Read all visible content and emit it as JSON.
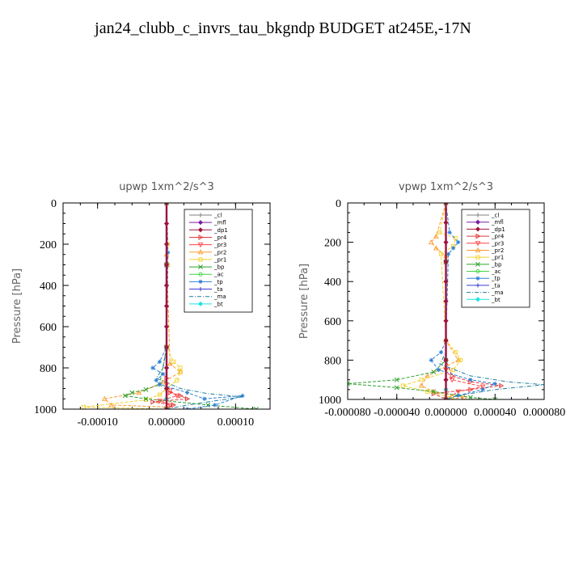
{
  "title": "jan24_clubb_c_invrs_tau_bkgndp  BUDGET at245E,-17N",
  "series_meta": [
    {
      "name": "_cl",
      "color": "#7f7f7f",
      "marker": "plus"
    },
    {
      "name": "_mfl",
      "color": "#7b1fa2",
      "marker": "diamond"
    },
    {
      "name": "_dp1",
      "color": "#a0143c",
      "marker": "diamond"
    },
    {
      "name": "_pr4",
      "color": "#e03a3a",
      "marker": "tri-right"
    },
    {
      "name": "_pr3",
      "color": "#ff4040",
      "marker": "tri-down"
    },
    {
      "name": "_pr2",
      "color": "#ff9a2e",
      "marker": "tri-up"
    },
    {
      "name": "_pr1",
      "color": "#f2d12a",
      "marker": "square"
    },
    {
      "name": "_bp",
      "color": "#2ca02c",
      "marker": "x"
    },
    {
      "name": "_ac",
      "color": "#3fd43f",
      "marker": "circle"
    },
    {
      "name": "_tp",
      "color": "#2e7fd6",
      "marker": "star"
    },
    {
      "name": "_ta",
      "color": "#3b3bd6",
      "marker": "plus"
    },
    {
      "name": "_ma",
      "color": "#1f7d9c",
      "marker": "none"
    },
    {
      "name": "_bt",
      "color": "#1ee3e3",
      "marker": "diamond"
    }
  ],
  "chart_data": [
    {
      "type": "line",
      "title": "upwp   1xm^2/s^3",
      "xlabel": "",
      "ylabel": "Pressure [hPa]",
      "xlim": [
        -0.00015,
        0.00015
      ],
      "ylim": [
        1000,
        0
      ],
      "xticks": [
        -0.0001,
        0,
        0.0001
      ],
      "xtick_labels": [
        "-0.00010",
        "0.00000",
        "0.00010"
      ],
      "yticks": [
        0,
        200,
        400,
        600,
        800,
        1000
      ],
      "ytick_labels": [
        "0",
        "200",
        "400",
        "600",
        "800",
        "1000"
      ],
      "legend": "top-right",
      "grid": false,
      "series": [
        {
          "name": "_cl",
          "x": [
            0,
            0,
            0,
            0,
            0,
            0,
            0,
            0,
            0,
            0,
            0
          ],
          "y": [
            0,
            100,
            200,
            300,
            400,
            500,
            600,
            700,
            800,
            900,
            1000
          ]
        },
        {
          "name": "_mfl",
          "x": [
            0,
            0,
            0,
            0,
            0,
            0,
            0,
            0,
            0,
            0,
            0
          ],
          "y": [
            0,
            100,
            200,
            300,
            400,
            500,
            600,
            700,
            800,
            900,
            1000
          ]
        },
        {
          "name": "_dp1",
          "x": [
            0,
            0,
            0,
            0,
            0,
            0,
            0,
            0,
            0,
            0,
            0
          ],
          "y": [
            0,
            100,
            200,
            300,
            400,
            500,
            600,
            700,
            800,
            900,
            1000
          ]
        },
        {
          "name": "_pr4",
          "x": [
            0,
            0,
            0,
            0,
            0,
            5e-06,
            2e-05,
            3e-05,
            -2e-05,
            1e-05,
            0
          ],
          "y": [
            0,
            300,
            700,
            850,
            900,
            920,
            935,
            950,
            965,
            980,
            1000
          ]
        },
        {
          "name": "_pr3",
          "x": [
            0,
            0,
            0,
            0,
            5e-06,
            1.5e-05,
            -1e-05,
            5e-06,
            0
          ],
          "y": [
            0,
            300,
            700,
            880,
            910,
            935,
            960,
            980,
            1000
          ]
        },
        {
          "name": "_pr2",
          "x": [
            0,
            0,
            5e-06,
            2e-05,
            -5e-06,
            -4e-05,
            -9e-05,
            -8e-05,
            0,
            0
          ],
          "y": [
            0,
            250,
            780,
            820,
            870,
            920,
            950,
            980,
            990,
            1000
          ]
        },
        {
          "name": "_pr1",
          "x": [
            0,
            2e-06,
            2e-06,
            0,
            1e-05,
            2e-05,
            2e-05,
            1.5e-05,
            0,
            -1e-05,
            -3e-05,
            -0.00012,
            0
          ],
          "y": [
            0,
            200,
            300,
            700,
            770,
            800,
            820,
            860,
            900,
            930,
            955,
            990,
            1000
          ]
        },
        {
          "name": "_bp",
          "x": [
            0,
            0,
            0,
            -1e-05,
            -3e-05,
            -5e-05,
            -6e-05,
            -3e-05,
            6e-05,
            0.00013,
            0
          ],
          "y": [
            0,
            300,
            700,
            880,
            905,
            920,
            935,
            950,
            980,
            1000,
            1000
          ]
        },
        {
          "name": "_ac",
          "x": [
            0,
            0,
            0,
            0,
            0,
            0
          ],
          "y": [
            0,
            300,
            700,
            900,
            950,
            1000
          ]
        },
        {
          "name": "_tp",
          "x": [
            0,
            2e-06,
            0,
            -1e-05,
            -2e-05,
            -5e-06,
            -1.5e-05,
            -1e-05,
            3e-05,
            5.5e-05,
            0.00011,
            7e-05,
            3e-05
          ],
          "y": [
            0,
            240,
            700,
            770,
            800,
            830,
            860,
            880,
            920,
            950,
            935,
            980,
            1000
          ]
        },
        {
          "name": "_ta",
          "x": [
            0,
            0,
            0,
            0,
            0,
            0
          ],
          "y": [
            0,
            300,
            700,
            900,
            950,
            1000
          ]
        },
        {
          "name": "_ma",
          "x": [
            0,
            0,
            0,
            -5e-06,
            -1.5e-05,
            2e-05,
            6e-05,
            0.00011,
            3e-05,
            0
          ],
          "y": [
            0,
            300,
            700,
            800,
            850,
            900,
            925,
            940,
            980,
            1000
          ]
        },
        {
          "name": "_bt",
          "x": [
            0,
            0,
            0,
            0,
            0,
            0
          ],
          "y": [
            0,
            300,
            700,
            900,
            950,
            1000
          ]
        }
      ]
    },
    {
      "type": "line",
      "title": "vpwp   1xm^2/s^3",
      "xlabel": "",
      "ylabel": "Pressure [hPa]",
      "xlim": [
        -8e-05,
        8e-05
      ],
      "ylim": [
        1000,
        0
      ],
      "xticks": [
        -8e-05,
        -4e-05,
        0,
        4e-05,
        8e-05
      ],
      "xtick_labels": [
        "-0.000080",
        "-0.000040",
        "0.000000",
        "0.000040",
        "0.000080"
      ],
      "yticks": [
        0,
        200,
        400,
        600,
        800,
        1000
      ],
      "ytick_labels": [
        "0",
        "200",
        "400",
        "600",
        "800",
        "1000"
      ],
      "legend": "top-right",
      "grid": false,
      "series": [
        {
          "name": "_cl",
          "x": [
            0,
            0,
            0,
            0,
            0,
            0,
            0,
            0,
            0,
            0,
            0
          ],
          "y": [
            0,
            100,
            200,
            300,
            400,
            500,
            600,
            700,
            800,
            900,
            1000
          ]
        },
        {
          "name": "_mfl",
          "x": [
            0,
            0,
            0,
            0,
            0,
            0,
            0,
            0,
            0,
            0,
            0
          ],
          "y": [
            0,
            100,
            200,
            300,
            400,
            500,
            600,
            700,
            800,
            900,
            1000
          ]
        },
        {
          "name": "_dp1",
          "x": [
            0,
            0,
            0,
            0,
            0,
            0,
            0,
            0,
            0,
            0,
            0
          ],
          "y": [
            0,
            100,
            200,
            300,
            400,
            500,
            600,
            700,
            800,
            900,
            1000
          ]
        },
        {
          "name": "_pr4",
          "x": [
            0,
            0,
            0,
            5e-06,
            2e-05,
            4.5e-05,
            2e-05,
            -1e-05,
            0
          ],
          "y": [
            0,
            300,
            800,
            880,
            910,
            930,
            950,
            970,
            1000
          ]
        },
        {
          "name": "_pr3",
          "x": [
            0,
            0,
            0,
            5e-06,
            3e-05,
            1e-05,
            0
          ],
          "y": [
            0,
            300,
            850,
            900,
            935,
            960,
            1000
          ]
        },
        {
          "name": "_pr2",
          "x": [
            0,
            -8e-06,
            -1.2e-05,
            -8e-06,
            0,
            0,
            1e-05,
            -1.5e-05,
            -2e-05,
            -1e-05,
            1.5e-05,
            0
          ],
          "y": [
            0,
            170,
            200,
            230,
            270,
            700,
            800,
            880,
            930,
            960,
            990,
            1000
          ]
        },
        {
          "name": "_pr1",
          "x": [
            0,
            -5e-06,
            8e-06,
            6e-06,
            -4e-06,
            0,
            8e-06,
            1.2e-05,
            6e-06,
            -2e-05,
            -3.5e-05,
            -1.5e-05,
            5e-06,
            0
          ],
          "y": [
            0,
            150,
            180,
            220,
            260,
            700,
            760,
            800,
            850,
            900,
            930,
            960,
            990,
            1000
          ]
        },
        {
          "name": "_bp",
          "x": [
            0,
            0,
            0,
            -1e-05,
            -4e-05,
            -8e-05,
            -4e-05,
            -1e-05,
            2e-05,
            4e-05,
            0
          ],
          "y": [
            0,
            300,
            800,
            860,
            900,
            920,
            940,
            960,
            990,
            1000,
            1000
          ]
        },
        {
          "name": "_ac",
          "x": [
            0,
            0,
            0,
            0,
            0
          ],
          "y": [
            0,
            300,
            800,
            950,
            1000
          ]
        },
        {
          "name": "_tp",
          "x": [
            0,
            3e-06,
            1e-05,
            6e-06,
            2e-06,
            0,
            -4e-06,
            -1.2e-05,
            -6e-06,
            2e-05,
            4e-05,
            3e-05,
            1e-05,
            0
          ],
          "y": [
            0,
            150,
            200,
            230,
            260,
            700,
            760,
            800,
            850,
            900,
            920,
            950,
            980,
            1000
          ]
        },
        {
          "name": "_ta",
          "x": [
            0,
            0,
            0,
            0,
            0
          ],
          "y": [
            0,
            300,
            800,
            950,
            1000
          ]
        },
        {
          "name": "_ma",
          "x": [
            0,
            0,
            0,
            -5e-06,
            2e-05,
            5e-05,
            8e-05,
            4e-05,
            1e-05,
            0
          ],
          "y": [
            0,
            300,
            760,
            820,
            880,
            910,
            925,
            950,
            980,
            1000
          ]
        },
        {
          "name": "_bt",
          "x": [
            0,
            0,
            0,
            0,
            0
          ],
          "y": [
            0,
            300,
            800,
            950,
            1000
          ]
        }
      ]
    }
  ]
}
